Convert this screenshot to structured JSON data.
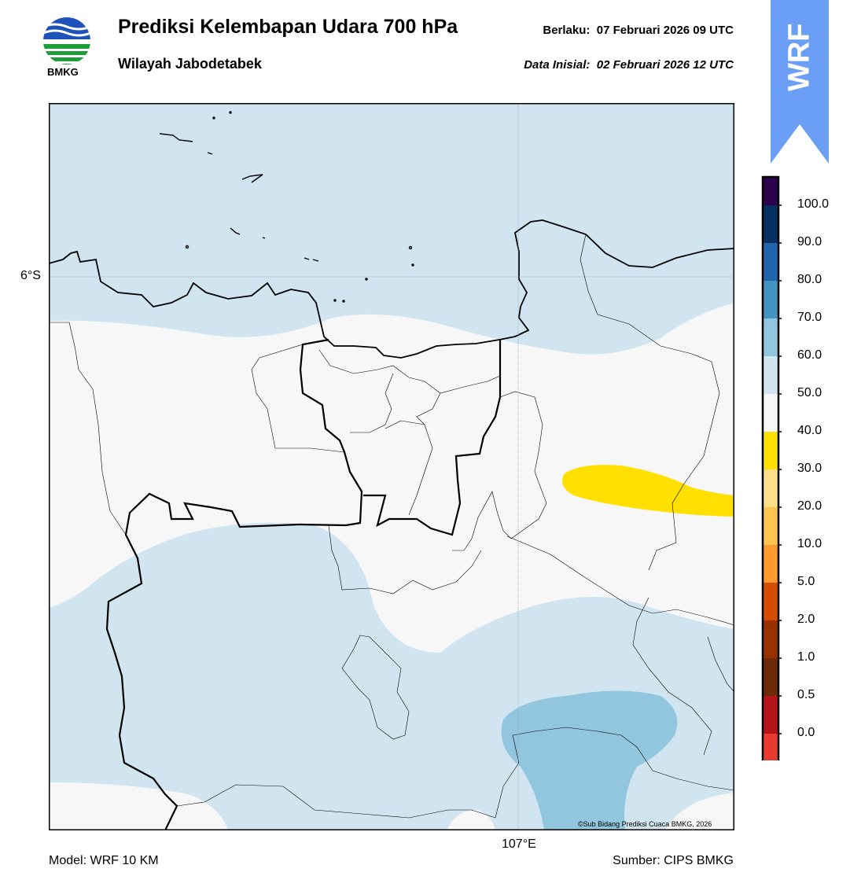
{
  "header": {
    "logo_text": "BMKG",
    "title": "Prediksi Kelembapan Udara 700 hPa",
    "subtitle": "Wilayah Jabodetabek",
    "valid_label": "Berlaku:",
    "valid_time": "07 Februari 2026 09 UTC",
    "init_label": "Data Inisial:",
    "init_time": "02 Februari 2026 12 UTC"
  },
  "badge": {
    "text": "WRF",
    "color": "#6b9ff5"
  },
  "map": {
    "lat_label": "6°S",
    "lon_label": "107°E",
    "copyright": "©Sub Bidang Prediksi Cuaca BMKG, 2026",
    "colors": {
      "sea": "#d1e5f0",
      "range_50_60": "#f7f7f7",
      "range_60_70": "#d1e5f0",
      "range_70_80": "#92c5de",
      "range_30_40": "#ffe000"
    }
  },
  "colorbar": {
    "ticks": [
      "100.0",
      "90.0",
      "80.0",
      "70.0",
      "60.0",
      "50.0",
      "40.0",
      "30.0",
      "20.0",
      "10.0",
      "5.0",
      "2.0",
      "1.0",
      "0.5",
      "0.0"
    ],
    "colors_top_to_bottom": [
      "#2d004b",
      "#053061",
      "#2166ac",
      "#4393c3",
      "#92c5de",
      "#d1e5f0",
      "#f7f7f7",
      "#ffe000",
      "#ffe08a",
      "#ffc34f",
      "#ff9a2e",
      "#d64d00",
      "#993000",
      "#6b2a08",
      "#b5141a",
      "#e83a2e"
    ]
  },
  "footer": {
    "model": "Model: WRF 10 KM",
    "source": "Sumber: CIPS BMKG"
  }
}
